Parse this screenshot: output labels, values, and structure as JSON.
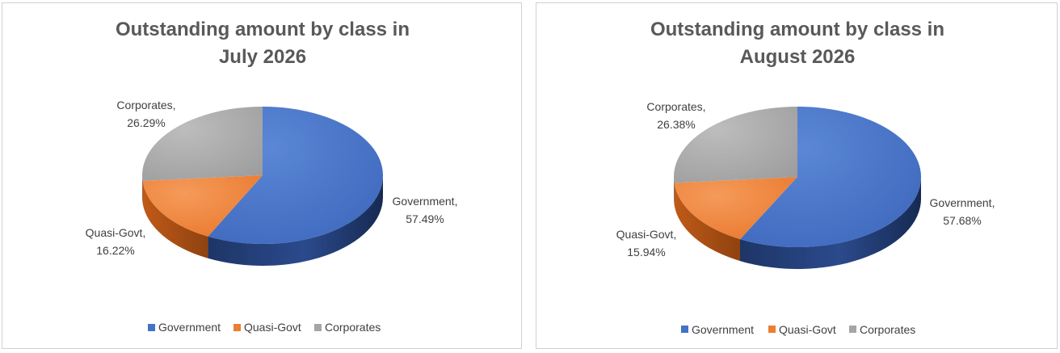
{
  "chart_data": [
    {
      "type": "pie",
      "title_lines": [
        "Outstanding amount by class in",
        "July 2026"
      ],
      "categories": [
        "Government",
        "Quasi-Govt",
        "Corporates"
      ],
      "values": [
        57.49,
        16.22,
        26.29
      ],
      "unit": "%",
      "data_labels": [
        [
          "Government,",
          "57.49%"
        ],
        [
          "Quasi-Govt,",
          "16.22%"
        ],
        [
          "Corporates,",
          "26.29%"
        ]
      ],
      "legend": [
        "Government",
        "Quasi-Govt",
        "Corporates"
      ],
      "legend_position": "bottom",
      "colors": [
        "#4472C4",
        "#ED7D31",
        "#A5A5A5"
      ],
      "style": "3d"
    },
    {
      "type": "pie",
      "title_lines": [
        "Outstanding amount by class in",
        "August 2026"
      ],
      "categories": [
        "Government",
        "Quasi-Govt",
        "Corporates"
      ],
      "values": [
        57.68,
        15.94,
        26.38
      ],
      "unit": "%",
      "data_labels": [
        [
          "Government,",
          "57.68%"
        ],
        [
          "Quasi-Govt,",
          "15.94%"
        ],
        [
          "Corporates,",
          "26.38%"
        ]
      ],
      "legend": [
        "Government",
        "Quasi-Govt",
        "Corporates"
      ],
      "legend_position": "bottom",
      "colors": [
        "#4472C4",
        "#ED7D31",
        "#A5A5A5"
      ],
      "style": "3d"
    }
  ]
}
